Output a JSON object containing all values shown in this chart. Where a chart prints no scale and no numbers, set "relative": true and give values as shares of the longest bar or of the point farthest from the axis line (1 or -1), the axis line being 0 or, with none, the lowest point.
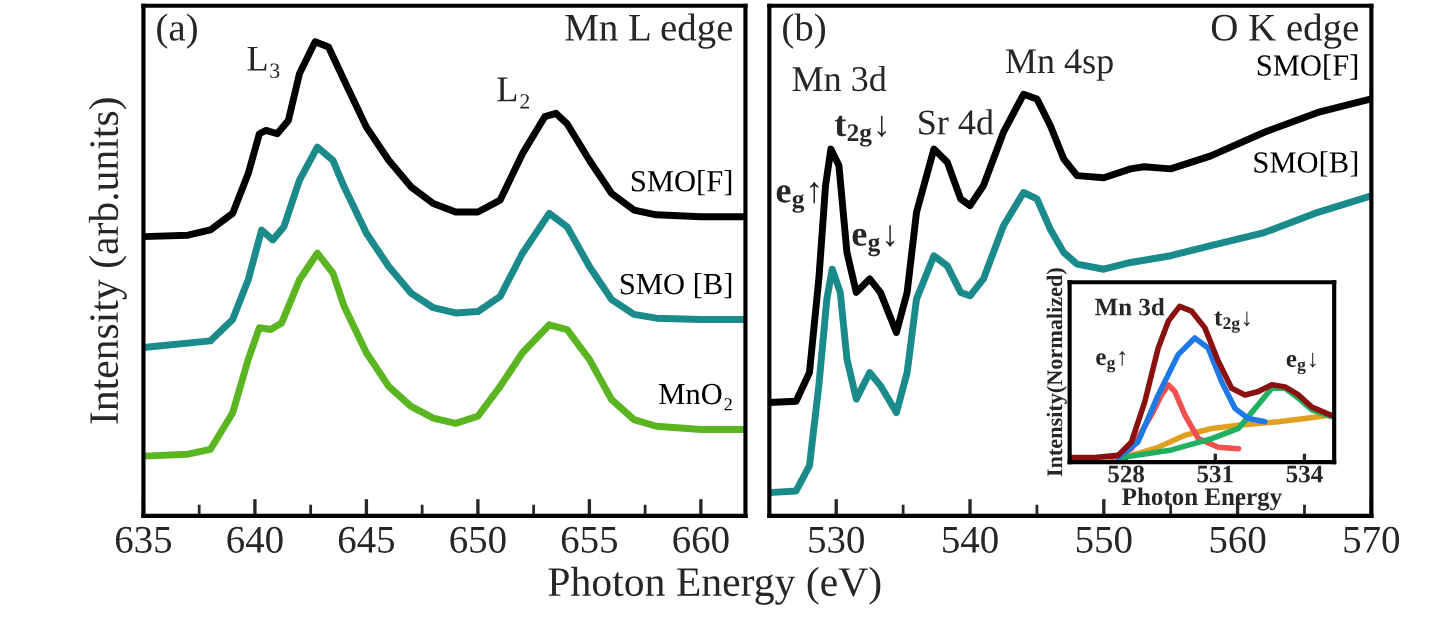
{
  "chart_data": [
    {
      "type": "line",
      "relative": true,
      "tick_labels": "x",
      "xlabel": "Photon Energy (eV)",
      "ylabel": "Intensity (arb.units)",
      "xlim": [
        635,
        662
      ],
      "xticks": [
        635,
        640,
        645,
        650,
        655,
        660
      ],
      "annotations": [
        "(a)",
        "Mn L edge",
        "L₃",
        "L₂"
      ],
      "series": [
        {
          "name": "SMO[F]",
          "color": "#000000",
          "x": [
            635,
            637,
            638,
            639,
            639.7,
            640.2,
            640.5,
            641,
            641.5,
            642,
            642.7,
            643.3,
            644,
            645,
            646,
            647,
            648,
            649,
            650,
            651,
            652,
            653,
            653.5,
            654,
            655,
            656,
            657,
            658,
            660,
            662
          ],
          "values": [
            0.589,
            0.592,
            0.603,
            0.638,
            0.722,
            0.806,
            0.813,
            0.806,
            0.834,
            0.933,
            1.0,
            0.989,
            0.919,
            0.82,
            0.75,
            0.694,
            0.659,
            0.641,
            0.641,
            0.666,
            0.764,
            0.842,
            0.849,
            0.827,
            0.75,
            0.68,
            0.645,
            0.635,
            0.631,
            0.631
          ]
        },
        {
          "name": "SMO [B]",
          "color": "#1a8a8a",
          "x": [
            635,
            638,
            639,
            639.7,
            640.3,
            640.8,
            641.3,
            642,
            642.8,
            643.5,
            644,
            645,
            646,
            647,
            648,
            649,
            650,
            651,
            652,
            653.2,
            654,
            655,
            656,
            657,
            658,
            660,
            662
          ],
          "values": [
            0.355,
            0.369,
            0.414,
            0.498,
            0.603,
            0.582,
            0.61,
            0.708,
            0.778,
            0.75,
            0.694,
            0.596,
            0.526,
            0.47,
            0.439,
            0.428,
            0.431,
            0.463,
            0.554,
            0.638,
            0.61,
            0.526,
            0.456,
            0.425,
            0.417,
            0.414,
            0.414
          ]
        },
        {
          "name": "MnO₂",
          "color": "#5ab520",
          "x": [
            635,
            637,
            638,
            639,
            639.7,
            640.2,
            640.7,
            641.2,
            642,
            642.8,
            643.5,
            644,
            645,
            646,
            647,
            648,
            649,
            650,
            651,
            652,
            653.2,
            654,
            655,
            656,
            657,
            658,
            660,
            662
          ],
          "values": [
            0.126,
            0.13,
            0.14,
            0.217,
            0.33,
            0.397,
            0.393,
            0.407,
            0.498,
            0.554,
            0.512,
            0.442,
            0.344,
            0.273,
            0.231,
            0.206,
            0.195,
            0.21,
            0.273,
            0.344,
            0.403,
            0.393,
            0.33,
            0.245,
            0.203,
            0.189,
            0.182,
            0.182
          ]
        }
      ]
    },
    {
      "type": "line",
      "relative": true,
      "tick_labels": "x",
      "xlim": [
        525,
        570
      ],
      "xticks": [
        530,
        540,
        550,
        560,
        570
      ],
      "annotations": [
        "(b)",
        "O K edge",
        "Mn 3d",
        "t$_{2g}$↓",
        "e$_{g}$↑",
        "e$_{g}$↓",
        "Sr 4d",
        "Mn 4sp"
      ],
      "series": [
        {
          "name": "SMO[F]",
          "color": "#000000",
          "x": [
            525,
            527,
            528,
            528.7,
            529.2,
            529.6,
            530.2,
            530.8,
            531.5,
            532.5,
            533.3,
            534.5,
            535.3,
            536,
            537.3,
            538.3,
            539.3,
            540,
            541,
            542.5,
            544,
            545,
            546,
            547,
            548,
            550,
            552,
            553,
            555,
            558,
            562,
            566,
            570
          ],
          "values": [
            0.269,
            0.272,
            0.34,
            0.562,
            0.783,
            0.87,
            0.831,
            0.625,
            0.53,
            0.562,
            0.53,
            0.435,
            0.53,
            0.72,
            0.87,
            0.839,
            0.752,
            0.736,
            0.783,
            0.91,
            1.0,
            0.989,
            0.926,
            0.847,
            0.807,
            0.802,
            0.823,
            0.828,
            0.823,
            0.854,
            0.91,
            0.957,
            0.989
          ]
        },
        {
          "name": "SMO[B]",
          "color": "#1a8a8a",
          "x": [
            525,
            527,
            528,
            528.7,
            529.3,
            529.7,
            530.3,
            530.8,
            531.5,
            532.5,
            533.3,
            534.5,
            535.3,
            536,
            537.3,
            538.3,
            539.3,
            540,
            541,
            542.5,
            544,
            545,
            546,
            547,
            548,
            550,
            552,
            555,
            558,
            562,
            566,
            570
          ],
          "values": [
            0.055,
            0.059,
            0.119,
            0.309,
            0.514,
            0.585,
            0.53,
            0.372,
            0.277,
            0.34,
            0.309,
            0.245,
            0.34,
            0.514,
            0.617,
            0.593,
            0.53,
            0.522,
            0.562,
            0.688,
            0.767,
            0.752,
            0.68,
            0.625,
            0.597,
            0.585,
            0.601,
            0.617,
            0.641,
            0.672,
            0.72,
            0.759
          ]
        }
      ]
    },
    {
      "type": "line",
      "relative": true,
      "tick_labels": "x",
      "xlabel": "Photon Energy",
      "ylabel": "Intensity(Normalized)",
      "xlim": [
        526.1,
        535.0
      ],
      "xticks": [
        528,
        531,
        534
      ],
      "annotations": [
        "Mn 3d",
        "t$_{2g}$↓",
        "e$_{g}$↑",
        "e$_{g}$↓"
      ],
      "series": [
        {
          "color": "#e0a020",
          "x": [
            526.94,
            528.18,
            529.08,
            529.98,
            530.88,
            531.78,
            533.12,
            534.02,
            534.88
          ],
          "values": [
            0.026,
            0.043,
            0.095,
            0.172,
            0.216,
            0.237,
            0.259,
            0.28,
            0.302
          ]
        },
        {
          "color": "#f05050",
          "x": [
            527.51,
            528.18,
            528.85,
            529.19,
            529.42,
            529.64,
            529.98,
            530.43,
            531.1,
            531.78
          ],
          "values": [
            0.026,
            0.086,
            0.302,
            0.431,
            0.496,
            0.453,
            0.302,
            0.151,
            0.095,
            0.086
          ]
        },
        {
          "color": "#20b060",
          "x": [
            527.73,
            529.53,
            530.88,
            531.78,
            532.34,
            532.9,
            533.35,
            533.8,
            534.25,
            534.88
          ],
          "values": [
            0.026,
            0.078,
            0.151,
            0.216,
            0.345,
            0.474,
            0.474,
            0.409,
            0.336,
            0.293
          ]
        },
        {
          "color": "#1e78e6",
          "x": [
            527.73,
            528.4,
            529.08,
            529.75,
            530.31,
            530.76,
            531.21,
            531.66,
            532.11,
            532.67
          ],
          "values": [
            0.03,
            0.129,
            0.431,
            0.69,
            0.797,
            0.733,
            0.517,
            0.345,
            0.28,
            0.259
          ]
        },
        {
          "color": "#8b1010",
          "x": [
            526.16,
            526.94,
            527.73,
            528.18,
            528.63,
            529.08,
            529.42,
            529.8,
            530.2,
            530.65,
            531.1,
            531.55,
            532.0,
            532.45,
            532.9,
            533.35,
            533.8,
            534.25,
            534.88
          ],
          "values": [
            0.03,
            0.03,
            0.043,
            0.129,
            0.388,
            0.733,
            0.905,
            1.0,
            0.97,
            0.862,
            0.647,
            0.474,
            0.431,
            0.453,
            0.496,
            0.483,
            0.431,
            0.353,
            0.302
          ]
        }
      ]
    }
  ]
}
